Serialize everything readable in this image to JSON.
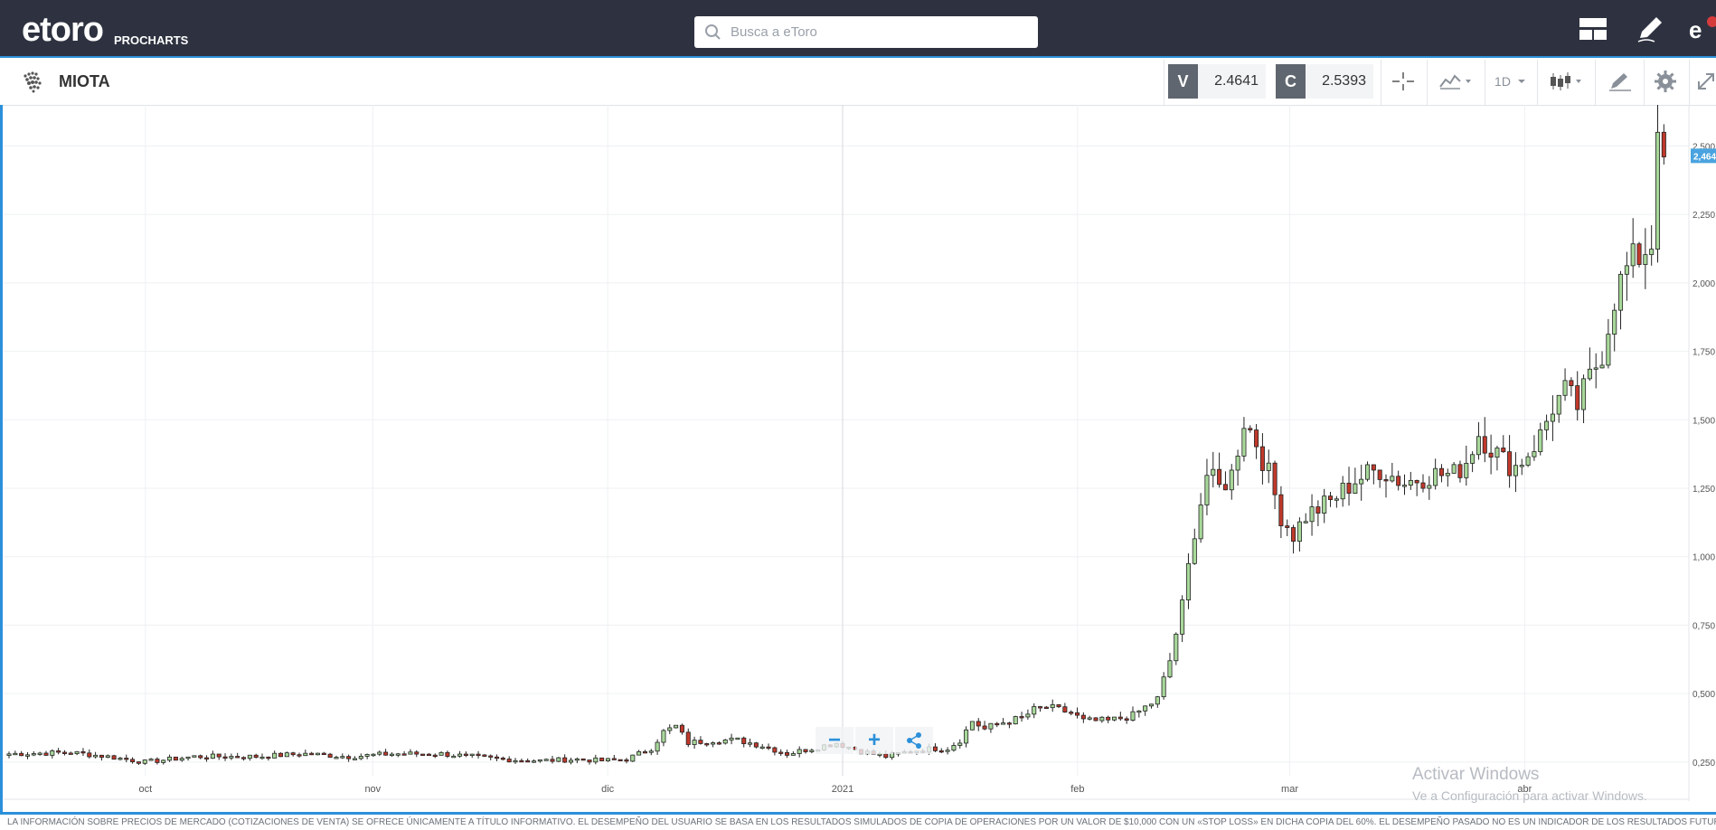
{
  "header": {
    "logo": "etoro",
    "procharts": "PROCHARTS",
    "search_placeholder": "Busca a eToro",
    "icons": [
      "layout-icon",
      "edit-pencil-icon",
      "profile-icon"
    ]
  },
  "instrument": {
    "name": "MIOTA",
    "icon": "iota-icon",
    "sell_label": "V",
    "sell_value": "2.4641",
    "buy_label": "C",
    "buy_value": "2.5393",
    "timeframe": "1D",
    "toolbar_icons": [
      "crosshair-icon",
      "indicators-icon",
      "timeframe-dropdown",
      "chart-type-icon",
      "drawing-icon",
      "settings-icon",
      "fullscreen-icon"
    ]
  },
  "chart_data": {
    "type": "candlestick",
    "x_labels": [
      "oct",
      "nov",
      "dic",
      "2021",
      "feb",
      "mar",
      "abr"
    ],
    "y_ticks": [
      "2,500",
      "2,250",
      "2,000",
      "1,750",
      "1,500",
      "1,250",
      "1,000",
      "0,750",
      "0,500",
      "0,250"
    ],
    "current_price_label": "2,464",
    "ylim": [
      0.2,
      2.65
    ],
    "colors": {
      "up": "#a8d89a",
      "down": "#c0392b",
      "outline": "#222222",
      "price_tag": "#4aa3df"
    },
    "anchors": [
      [
        0,
        0.28
      ],
      [
        10,
        0.285
      ],
      [
        16,
        0.27
      ],
      [
        22,
        0.25
      ],
      [
        26,
        0.26
      ],
      [
        30,
        0.27
      ],
      [
        40,
        0.27
      ],
      [
        48,
        0.28
      ],
      [
        55,
        0.27
      ],
      [
        62,
        0.28
      ],
      [
        70,
        0.28
      ],
      [
        75,
        0.27
      ],
      [
        80,
        0.26
      ],
      [
        86,
        0.255
      ],
      [
        92,
        0.26
      ],
      [
        96,
        0.255
      ],
      [
        100,
        0.26
      ],
      [
        104,
        0.3
      ],
      [
        106,
        0.36
      ],
      [
        108,
        0.38
      ],
      [
        110,
        0.32
      ],
      [
        114,
        0.33
      ],
      [
        118,
        0.33
      ],
      [
        122,
        0.31
      ],
      [
        126,
        0.28
      ],
      [
        130,
        0.3
      ],
      [
        134,
        0.32
      ],
      [
        138,
        0.29
      ],
      [
        142,
        0.27
      ],
      [
        146,
        0.29
      ],
      [
        150,
        0.3
      ],
      [
        152,
        0.3
      ],
      [
        154,
        0.33
      ],
      [
        156,
        0.4
      ],
      [
        158,
        0.37
      ],
      [
        160,
        0.39
      ],
      [
        164,
        0.41
      ],
      [
        166,
        0.44
      ],
      [
        168,
        0.45
      ],
      [
        172,
        0.43
      ],
      [
        174,
        0.4
      ],
      [
        178,
        0.4
      ],
      [
        182,
        0.42
      ],
      [
        186,
        0.48
      ],
      [
        188,
        0.62
      ],
      [
        190,
        0.82
      ],
      [
        192,
        1.1
      ],
      [
        194,
        1.3
      ],
      [
        196,
        1.25
      ],
      [
        198,
        1.3
      ],
      [
        200,
        1.5
      ],
      [
        202,
        1.42
      ],
      [
        204,
        1.3
      ],
      [
        206,
        1.15
      ],
      [
        208,
        1.08
      ],
      [
        210,
        1.15
      ],
      [
        214,
        1.2
      ],
      [
        218,
        1.28
      ],
      [
        222,
        1.32
      ],
      [
        226,
        1.27
      ],
      [
        230,
        1.3
      ],
      [
        234,
        1.3
      ],
      [
        236,
        1.35
      ],
      [
        238,
        1.45
      ],
      [
        240,
        1.4
      ],
      [
        242,
        1.35
      ],
      [
        244,
        1.33
      ],
      [
        246,
        1.38
      ],
      [
        248,
        1.44
      ],
      [
        250,
        1.55
      ],
      [
        252,
        1.6
      ],
      [
        254,
        1.55
      ],
      [
        256,
        1.65
      ],
      [
        258,
        1.75
      ],
      [
        260,
        1.95
      ],
      [
        262,
        2.05
      ],
      [
        264,
        2.1
      ],
      [
        266,
        2.15
      ],
      [
        267,
        2.55
      ],
      [
        268,
        2.46
      ]
    ]
  }
}
